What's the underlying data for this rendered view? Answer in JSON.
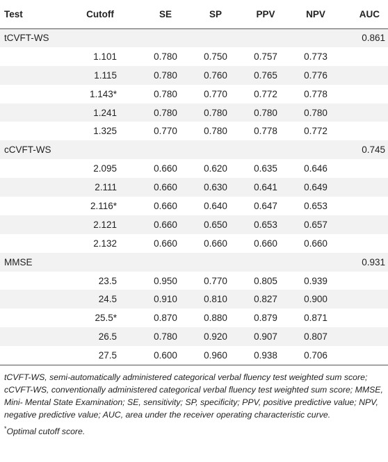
{
  "headers": [
    "Test",
    "Cutoff",
    "SE",
    "SP",
    "PPV",
    "NPV",
    "AUC"
  ],
  "rows": [
    {
      "test": "tCVFT-WS",
      "cutoff": "",
      "se": "",
      "sp": "",
      "ppv": "",
      "npv": "",
      "auc": "0.861"
    },
    {
      "test": "",
      "cutoff": "1.101",
      "se": "0.780",
      "sp": "0.750",
      "ppv": "0.757",
      "npv": "0.773",
      "auc": ""
    },
    {
      "test": "",
      "cutoff": "1.115",
      "se": "0.780",
      "sp": "0.760",
      "ppv": "0.765",
      "npv": "0.776",
      "auc": ""
    },
    {
      "test": "",
      "cutoff": "1.143*",
      "se": "0.780",
      "sp": "0.770",
      "ppv": "0.772",
      "npv": "0.778",
      "auc": ""
    },
    {
      "test": "",
      "cutoff": "1.241",
      "se": "0.780",
      "sp": "0.780",
      "ppv": "0.780",
      "npv": "0.780",
      "auc": ""
    },
    {
      "test": "",
      "cutoff": "1.325",
      "se": "0.770",
      "sp": "0.780",
      "ppv": "0.778",
      "npv": "0.772",
      "auc": ""
    },
    {
      "test": "cCVFT-WS",
      "cutoff": "",
      "se": "",
      "sp": "",
      "ppv": "",
      "npv": "",
      "auc": "0.745"
    },
    {
      "test": "",
      "cutoff": "2.095",
      "se": "0.660",
      "sp": "0.620",
      "ppv": "0.635",
      "npv": "0.646",
      "auc": ""
    },
    {
      "test": "",
      "cutoff": "2.111",
      "se": "0.660",
      "sp": "0.630",
      "ppv": "0.641",
      "npv": "0.649",
      "auc": ""
    },
    {
      "test": "",
      "cutoff": "2.116*",
      "se": "0.660",
      "sp": "0.640",
      "ppv": "0.647",
      "npv": "0.653",
      "auc": ""
    },
    {
      "test": "",
      "cutoff": "2.121",
      "se": "0.660",
      "sp": "0.650",
      "ppv": "0.653",
      "npv": "0.657",
      "auc": ""
    },
    {
      "test": "",
      "cutoff": "2.132",
      "se": "0.660",
      "sp": "0.660",
      "ppv": "0.660",
      "npv": "0.660",
      "auc": ""
    },
    {
      "test": "MMSE",
      "cutoff": "",
      "se": "",
      "sp": "",
      "ppv": "",
      "npv": "",
      "auc": "0.931"
    },
    {
      "test": "",
      "cutoff": "23.5",
      "se": "0.950",
      "sp": "0.770",
      "ppv": "0.805",
      "npv": "0.939",
      "auc": ""
    },
    {
      "test": "",
      "cutoff": "24.5",
      "se": "0.910",
      "sp": "0.810",
      "ppv": "0.827",
      "npv": "0.900",
      "auc": ""
    },
    {
      "test": "",
      "cutoff": "25.5*",
      "se": "0.870",
      "sp": "0.880",
      "ppv": "0.879",
      "npv": "0.871",
      "auc": ""
    },
    {
      "test": "",
      "cutoff": "26.5",
      "se": "0.780",
      "sp": "0.920",
      "ppv": "0.907",
      "npv": "0.807",
      "auc": ""
    },
    {
      "test": "",
      "cutoff": "27.5",
      "se": "0.600",
      "sp": "0.960",
      "ppv": "0.938",
      "npv": "0.706",
      "auc": ""
    }
  ],
  "footnote": "tCVFT-WS, semi-automatically administered categorical verbal fluency test weighted sum score; cCVFT-WS, conventionally administered categorical verbal fluency test weighted sum score; MMSE, Mini- Mental State Examination; SE, sensitivity; SP, specificity; PPV, positive predictive value; NPV, negative predictive value; AUC, area under the receiver operating characteristic curve.",
  "star_note": {
    "marker": "*",
    "text": "Optimal cutoff score."
  }
}
